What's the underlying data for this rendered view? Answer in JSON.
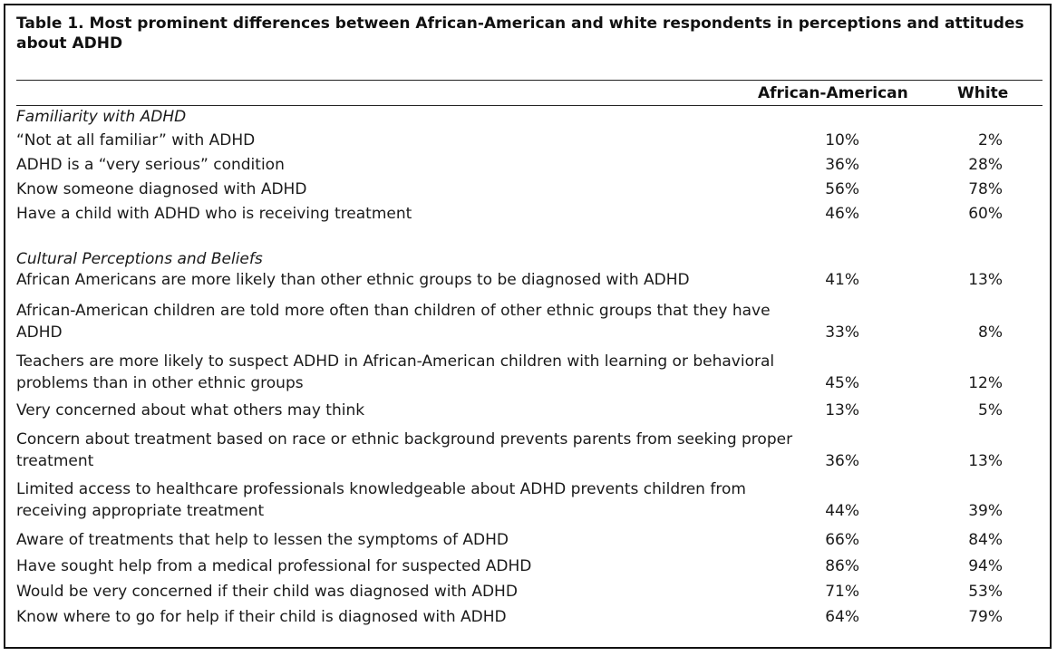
{
  "table": {
    "title": "Table 1. Most prominent differences between African-American and white respondents in perceptions and attitudes about ADHD",
    "columns": [
      "African-American",
      "White"
    ],
    "sections": [
      {
        "heading": "Familiarity with ADHD",
        "rows": [
          {
            "label": "“Not at all familiar” with ADHD",
            "aa": "10%",
            "white": "2%"
          },
          {
            "label": "ADHD is a “very serious” condition",
            "aa": "36%",
            "white": "28%"
          },
          {
            "label": "Know someone diagnosed with ADHD",
            "aa": "56%",
            "white": "78%"
          },
          {
            "label": "Have a child with ADHD who is receiving treatment",
            "aa": "46%",
            "white": "60%"
          }
        ]
      },
      {
        "heading": "Cultural Perceptions and Beliefs",
        "rows": [
          {
            "label": "African Americans are more likely than other ethnic groups to be diagnosed with ADHD",
            "aa": "41%",
            "white": "13%"
          },
          {
            "label": "African-American children are told more often than children of other ethnic groups that they have ADHD",
            "aa": "33%",
            "white": "8%"
          },
          {
            "label": "Teachers are more likely to suspect ADHD in African-American children with learning or behavioral problems than in other ethnic groups",
            "aa": "45%",
            "white": "12%"
          },
          {
            "label": "Very concerned about what others may think",
            "aa": "13%",
            "white": "5%"
          },
          {
            "label": "Concern about treatment based on race or ethnic background prevents parents from seeking proper treatment",
            "aa": "36%",
            "white": "13%"
          },
          {
            "label": "Limited access to healthcare professionals knowledgeable about ADHD prevents children from receiving appropriate treatment",
            "aa": "44%",
            "white": "39%"
          },
          {
            "label": "Aware of treatments that help to lessen the symptoms of ADHD",
            "aa": "66%",
            "white": "84%"
          },
          {
            "label": "Have sought help from a medical professional for suspected ADHD",
            "aa": "86%",
            "white": "94%"
          },
          {
            "label": "Would be very concerned if their child was diagnosed with ADHD",
            "aa": "71%",
            "white": "53%"
          },
          {
            "label": "Know where to go for help if their child is diagnosed with ADHD",
            "aa": "64%",
            "white": "79%"
          }
        ]
      }
    ]
  }
}
